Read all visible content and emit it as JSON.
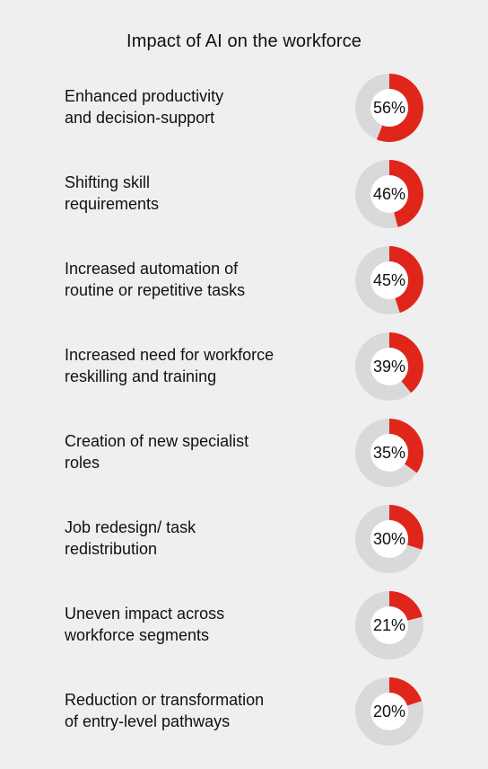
{
  "chart_data": {
    "type": "pie",
    "title": "Impact of AI on the workforce",
    "items": [
      {
        "label": "Enhanced productivity\nand decision-support",
        "value": 56,
        "display": "56%"
      },
      {
        "label": "Shifting skill\nrequirements",
        "value": 46,
        "display": "46%"
      },
      {
        "label": "Increased automation of\nroutine or repetitive tasks",
        "value": 45,
        "display": "45%"
      },
      {
        "label": "Increased need for workforce\nreskilling and training",
        "value": 39,
        "display": "39%"
      },
      {
        "label": "Creation of new specialist\nroles",
        "value": 35,
        "display": "35%"
      },
      {
        "label": "Job redesign/ task\nredistribution",
        "value": 30,
        "display": "30%"
      },
      {
        "label": "Uneven impact across\nworkforce segments",
        "value": 21,
        "display": "21%"
      },
      {
        "label": "Reduction or transformation\nof entry-level pathways",
        "value": 20,
        "display": "20%"
      }
    ],
    "colors": {
      "accent": "#e0261b",
      "track": "#d9d9d9",
      "center": "#ffffff"
    }
  }
}
